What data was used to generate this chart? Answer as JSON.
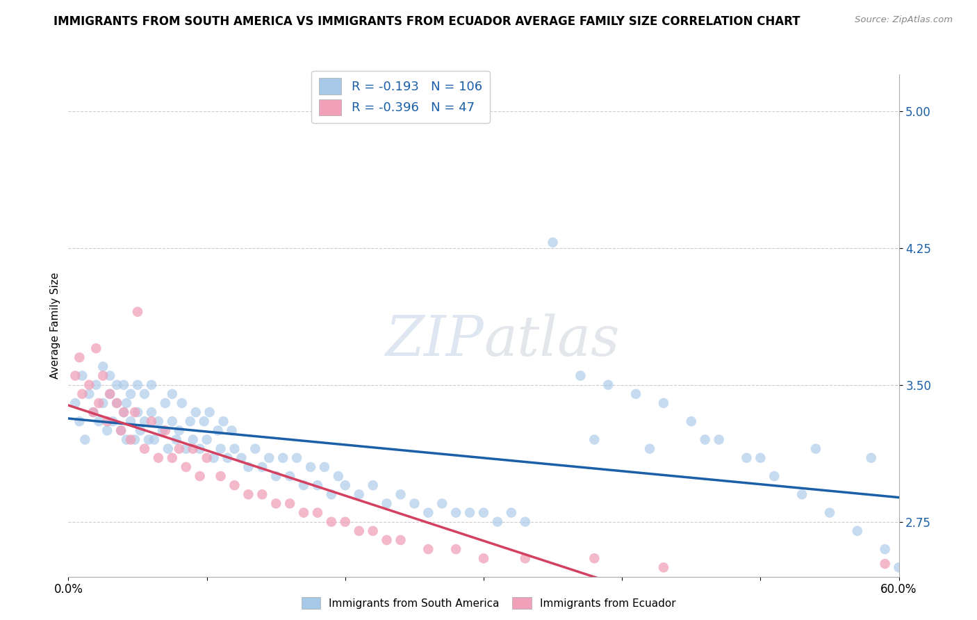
{
  "title": "IMMIGRANTS FROM SOUTH AMERICA VS IMMIGRANTS FROM ECUADOR AVERAGE FAMILY SIZE CORRELATION CHART",
  "source": "Source: ZipAtlas.com",
  "ylabel": "Average Family Size",
  "legend_blue_r": "-0.193",
  "legend_blue_n": "106",
  "legend_pink_r": "-0.396",
  "legend_pink_n": "47",
  "yticks": [
    2.75,
    3.5,
    4.25,
    5.0
  ],
  "xlim": [
    0.0,
    0.6
  ],
  "ylim": [
    2.45,
    5.2
  ],
  "blue_color": "#a8c8e8",
  "blue_line_color": "#1a5fa8",
  "pink_color": "#f0a0b8",
  "pink_line_color": "#d44060",
  "blue_line_intercept": 3.38,
  "blue_line_slope": -0.42,
  "pink_line_intercept": 3.52,
  "pink_line_slope": -1.3,
  "blue_x": [
    0.005,
    0.008,
    0.01,
    0.012,
    0.015,
    0.018,
    0.02,
    0.022,
    0.025,
    0.025,
    0.028,
    0.03,
    0.03,
    0.032,
    0.035,
    0.035,
    0.038,
    0.04,
    0.04,
    0.042,
    0.042,
    0.045,
    0.045,
    0.048,
    0.05,
    0.05,
    0.052,
    0.055,
    0.055,
    0.058,
    0.06,
    0.06,
    0.062,
    0.065,
    0.068,
    0.07,
    0.072,
    0.075,
    0.075,
    0.078,
    0.08,
    0.082,
    0.085,
    0.088,
    0.09,
    0.092,
    0.095,
    0.098,
    0.1,
    0.102,
    0.105,
    0.108,
    0.11,
    0.112,
    0.115,
    0.118,
    0.12,
    0.125,
    0.13,
    0.135,
    0.14,
    0.145,
    0.15,
    0.155,
    0.16,
    0.165,
    0.17,
    0.175,
    0.18,
    0.185,
    0.19,
    0.195,
    0.2,
    0.21,
    0.22,
    0.23,
    0.24,
    0.25,
    0.26,
    0.27,
    0.28,
    0.29,
    0.3,
    0.31,
    0.32,
    0.33,
    0.35,
    0.37,
    0.39,
    0.41,
    0.43,
    0.45,
    0.47,
    0.49,
    0.51,
    0.53,
    0.55,
    0.57,
    0.59,
    0.6,
    0.38,
    0.42,
    0.46,
    0.5,
    0.54,
    0.58
  ],
  "blue_y": [
    3.4,
    3.3,
    3.55,
    3.2,
    3.45,
    3.35,
    3.5,
    3.3,
    3.4,
    3.6,
    3.25,
    3.45,
    3.55,
    3.3,
    3.4,
    3.5,
    3.25,
    3.35,
    3.5,
    3.2,
    3.4,
    3.3,
    3.45,
    3.2,
    3.35,
    3.5,
    3.25,
    3.3,
    3.45,
    3.2,
    3.35,
    3.5,
    3.2,
    3.3,
    3.25,
    3.4,
    3.15,
    3.3,
    3.45,
    3.2,
    3.25,
    3.4,
    3.15,
    3.3,
    3.2,
    3.35,
    3.15,
    3.3,
    3.2,
    3.35,
    3.1,
    3.25,
    3.15,
    3.3,
    3.1,
    3.25,
    3.15,
    3.1,
    3.05,
    3.15,
    3.05,
    3.1,
    3.0,
    3.1,
    3.0,
    3.1,
    2.95,
    3.05,
    2.95,
    3.05,
    2.9,
    3.0,
    2.95,
    2.9,
    2.95,
    2.85,
    2.9,
    2.85,
    2.8,
    2.85,
    2.8,
    2.8,
    2.8,
    2.75,
    2.8,
    2.75,
    4.28,
    3.55,
    3.5,
    3.45,
    3.4,
    3.3,
    3.2,
    3.1,
    3.0,
    2.9,
    2.8,
    2.7,
    2.6,
    2.5,
    3.2,
    3.15,
    3.2,
    3.1,
    3.15,
    3.1
  ],
  "pink_x": [
    0.005,
    0.008,
    0.01,
    0.015,
    0.018,
    0.02,
    0.022,
    0.025,
    0.028,
    0.03,
    0.035,
    0.038,
    0.04,
    0.045,
    0.048,
    0.05,
    0.055,
    0.06,
    0.065,
    0.07,
    0.075,
    0.08,
    0.085,
    0.09,
    0.095,
    0.1,
    0.11,
    0.12,
    0.13,
    0.14,
    0.15,
    0.16,
    0.17,
    0.18,
    0.19,
    0.2,
    0.21,
    0.22,
    0.23,
    0.24,
    0.26,
    0.28,
    0.3,
    0.33,
    0.38,
    0.43,
    0.59
  ],
  "pink_y": [
    3.55,
    3.65,
    3.45,
    3.5,
    3.35,
    3.7,
    3.4,
    3.55,
    3.3,
    3.45,
    3.4,
    3.25,
    3.35,
    3.2,
    3.35,
    3.9,
    3.15,
    3.3,
    3.1,
    3.25,
    3.1,
    3.15,
    3.05,
    3.15,
    3.0,
    3.1,
    3.0,
    2.95,
    2.9,
    2.9,
    2.85,
    2.85,
    2.8,
    2.8,
    2.75,
    2.75,
    2.7,
    2.7,
    2.65,
    2.65,
    2.6,
    2.6,
    2.55,
    2.55,
    2.55,
    2.5,
    2.52
  ]
}
